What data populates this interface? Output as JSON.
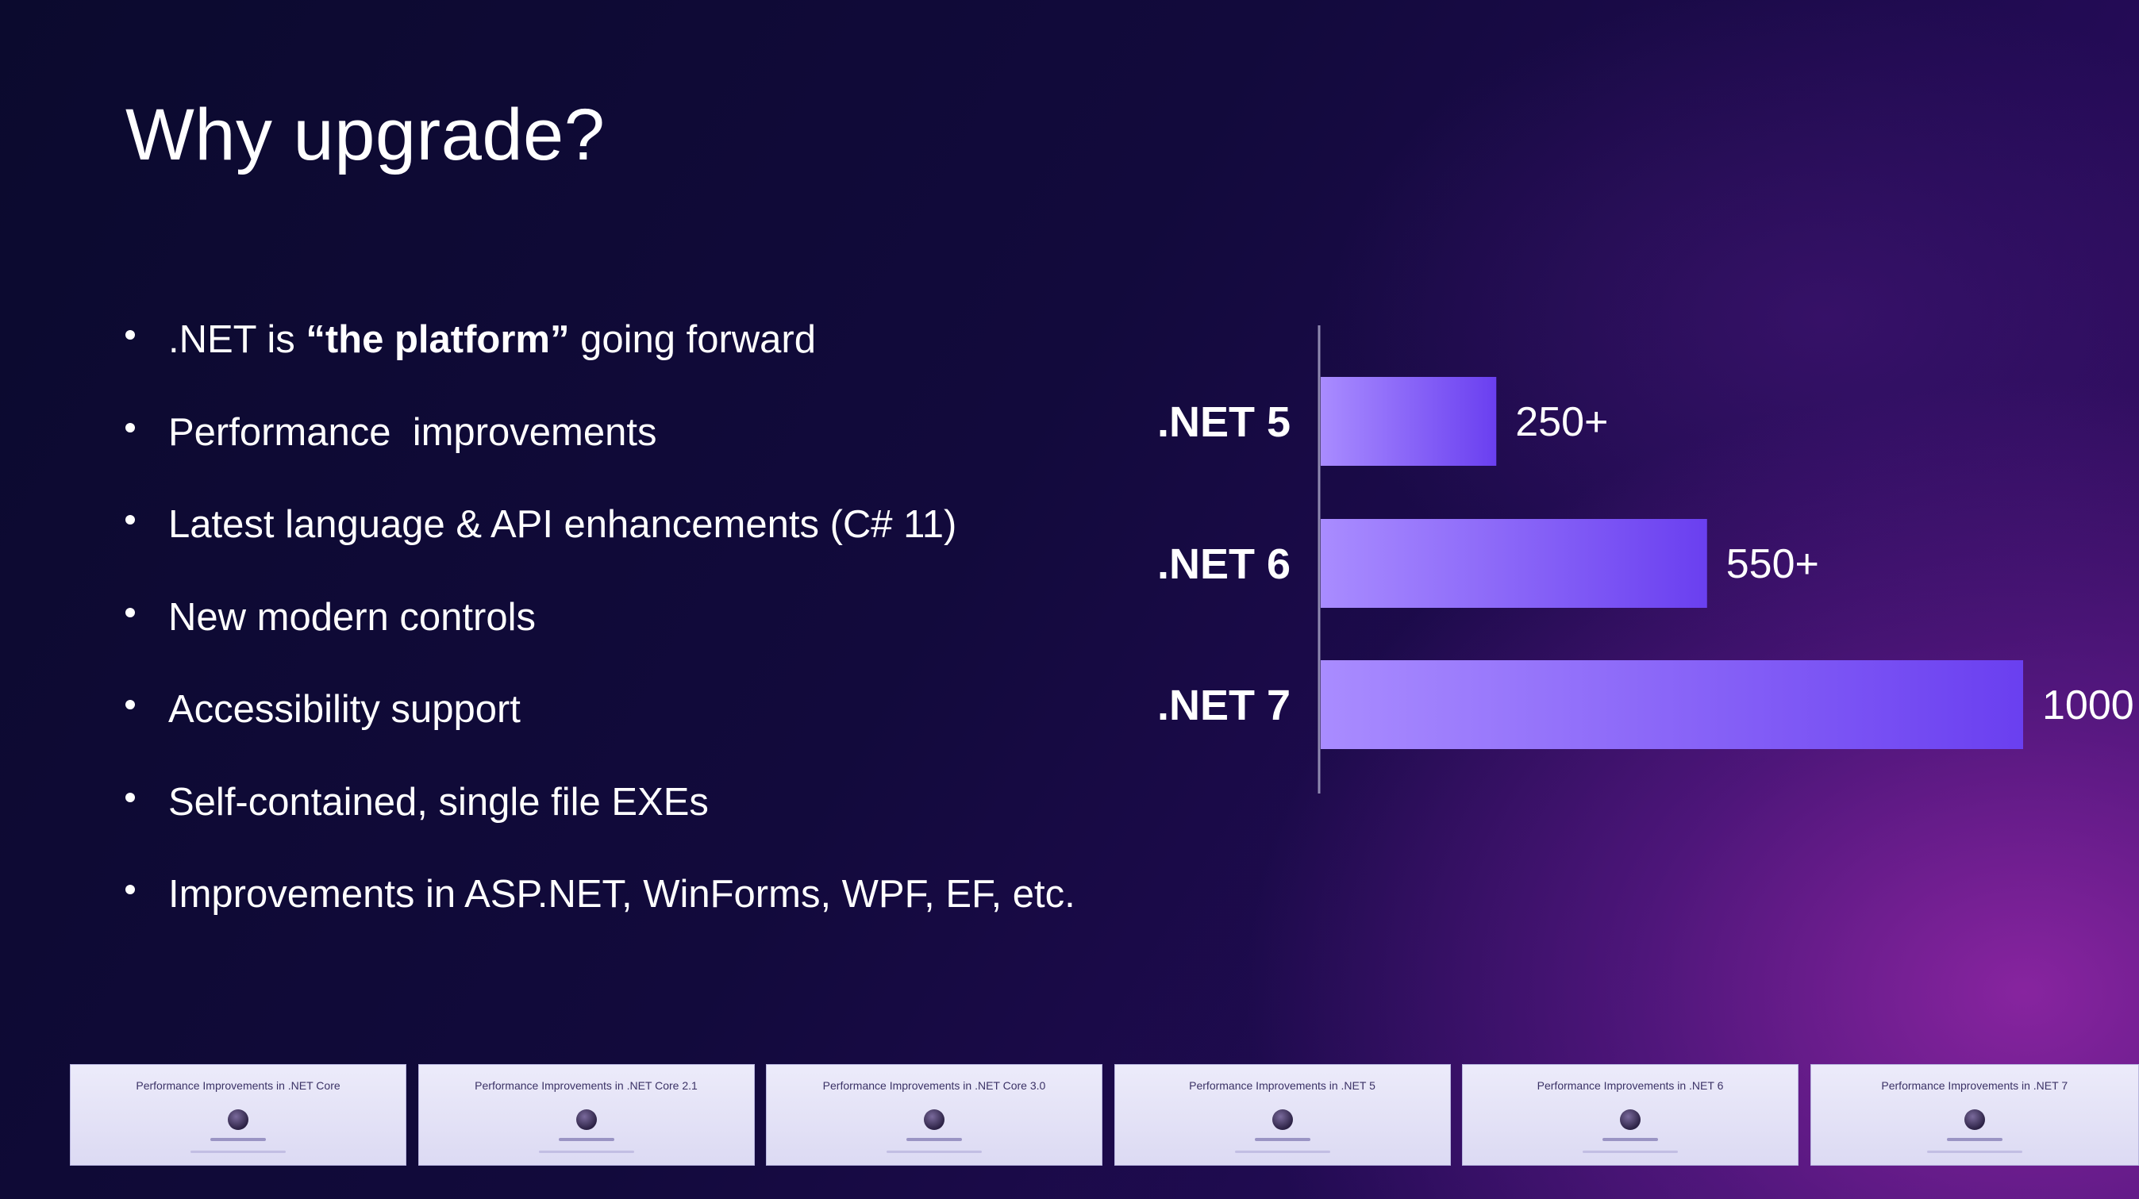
{
  "slide": {
    "title": "Why upgrade?",
    "bullets": [
      {
        "pre": ".NET is ",
        "strong": "“the platform”",
        "post": " going forward"
      },
      {
        "text": "Performance  improvements"
      },
      {
        "text": "Latest language & API enhancements (C# 11)"
      },
      {
        "text": "New modern controls"
      },
      {
        "text": "Accessibility support"
      },
      {
        "text": "Self-contained, single file EXEs"
      },
      {
        "text": "Improvements in ASP.NET, WinForms, WPF, EF, etc."
      }
    ]
  },
  "chart_data": {
    "type": "bar",
    "orientation": "horizontal",
    "categories": [
      ".NET 5",
      ".NET 6",
      ".NET 7"
    ],
    "values": [
      250,
      550,
      1000
    ],
    "value_labels": [
      "250+",
      "550+",
      "1000"
    ],
    "title": "",
    "xlabel": "",
    "ylabel": "",
    "xlim": [
      0,
      1000
    ],
    "grid": false,
    "bar_color_start": "#a98cff",
    "bar_color_end": "#6a3ff0"
  },
  "thumbnails": [
    {
      "title": "Performance Improvements in .NET Core"
    },
    {
      "title": "Performance Improvements in .NET Core 2.1"
    },
    {
      "title": "Performance Improvements in .NET Core 3.0"
    },
    {
      "title": "Performance Improvements in .NET 5"
    },
    {
      "title": "Performance Improvements in .NET 6"
    },
    {
      "title": "Performance Improvements in .NET 7"
    }
  ]
}
